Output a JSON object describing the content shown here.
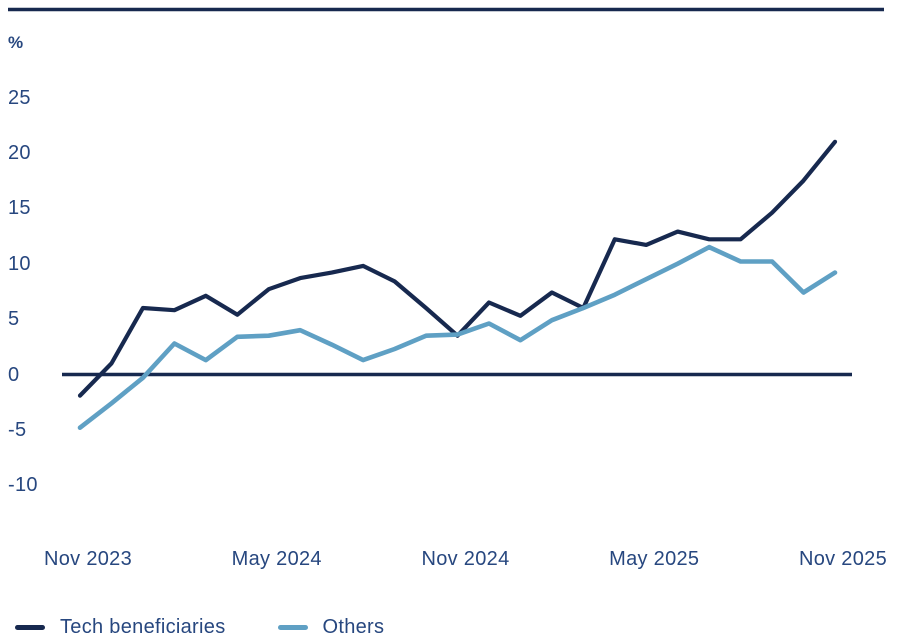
{
  "colors": {
    "dark_navy": "#17294f",
    "light_blue": "#5fa0c4",
    "text": "#27477f",
    "background": "#ffffff"
  },
  "y_axis": {
    "unit_label": "%"
  },
  "chart_data": {
    "type": "line",
    "title": "",
    "xlabel": "",
    "ylabel": "%",
    "grid": false,
    "zero_axis": true,
    "legend_position": "bottom-left",
    "ylim": [
      -10,
      25
    ],
    "y_ticks": [
      25,
      20,
      15,
      10,
      5,
      0,
      -5,
      -10
    ],
    "x_interval": "monthly",
    "months": [
      "Nov 2023",
      "Dec 2023",
      "Jan 2024",
      "Feb 2024",
      "Mar 2024",
      "Apr 2024",
      "May 2024",
      "Jun 2024",
      "Jul 2024",
      "Aug 2024",
      "Sep 2024",
      "Oct 2024",
      "Nov 2024",
      "Dec 2024",
      "Jan 2025",
      "Feb 2025",
      "Mar 2025",
      "Apr 2025",
      "May 2025",
      "Jun 2025",
      "Jul 2025",
      "Aug 2025",
      "Sep 2025",
      "Oct 2025",
      "Nov 2025"
    ],
    "x_tick_labels": [
      {
        "label": "Nov 2023",
        "month_index": 0
      },
      {
        "label": "May 2024",
        "month_index": 6
      },
      {
        "label": "Nov 2024",
        "month_index": 12
      },
      {
        "label": "May 2025",
        "month_index": 18
      },
      {
        "label": "Nov 2025",
        "month_index": 24
      }
    ],
    "series": [
      {
        "name": "Tech beneficiaries",
        "color_key": "dark_navy",
        "values": [
          -1.9,
          1.0,
          6.0,
          5.8,
          7.1,
          5.4,
          7.7,
          8.7,
          9.2,
          9.8,
          8.4,
          6.0,
          3.5,
          6.5,
          5.3,
          7.4,
          6.0,
          12.2,
          11.7,
          12.9,
          12.2,
          12.2,
          14.6,
          17.5,
          21.0
        ]
      },
      {
        "name": "Others",
        "color_key": "light_blue",
        "values": [
          -4.8,
          -2.6,
          -0.3,
          2.8,
          1.3,
          3.4,
          3.5,
          4.0,
          2.7,
          1.3,
          2.3,
          3.5,
          3.6,
          4.6,
          3.1,
          4.9,
          6.0,
          7.2,
          8.6,
          10.0,
          11.5,
          10.2,
          10.2,
          7.4,
          9.2
        ]
      }
    ]
  }
}
